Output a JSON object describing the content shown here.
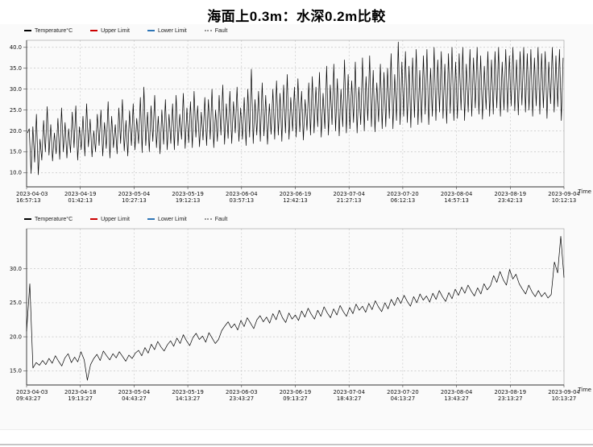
{
  "title": "海面上0.3m：水深0.2m比較",
  "time_axis_label": "Time",
  "legend": [
    {
      "label": "Temperature°C",
      "color": "#000000",
      "style": "solid"
    },
    {
      "label": "Upper Limit",
      "color": "#cc0000",
      "style": "solid"
    },
    {
      "label": "Lower Limit",
      "color": "#2e75b6",
      "style": "solid"
    },
    {
      "label": "Fault",
      "color": "#999999",
      "style": "dotted"
    }
  ],
  "chart_data": [
    {
      "name": "sea-surface-air-temperature",
      "type": "line",
      "line_color": "#000000",
      "grid": true,
      "legend_position": "top-left",
      "ylim": [
        6.6,
        41.7
      ],
      "y_ticks": [
        10,
        15,
        20,
        25,
        30,
        35,
        40
      ],
      "x_ticks": [
        [
          "2023-04-03",
          "16:57:13"
        ],
        [
          "2023-04-19",
          "01:42:13"
        ],
        [
          "2023-05-04",
          "10:27:13"
        ],
        [
          "2023-05-19",
          "19:12:13"
        ],
        [
          "2023-06-04",
          "03:57:13"
        ],
        [
          "2023-06-19",
          "12:42:13"
        ],
        [
          "2023-07-04",
          "21:27:13"
        ],
        [
          "2023-07-20",
          "06:12:13"
        ],
        [
          "2023-08-04",
          "14:57:13"
        ],
        [
          "2023-08-19",
          "23:42:13"
        ],
        [
          "2023-09-04",
          "10:12:13"
        ]
      ],
      "series": [
        {
          "name": "Temperature°C",
          "daily_min_max": [
            [
              19.5,
              20.5
            ],
            [
              9.8,
              21.0
            ],
            [
              12.5,
              24.0
            ],
            [
              9.5,
              18.0
            ],
            [
              13.0,
              22.5
            ],
            [
              15.0,
              25.8
            ],
            [
              14.2,
              21.5
            ],
            [
              12.8,
              19.5
            ],
            [
              14.5,
              23.0
            ],
            [
              13.2,
              25.5
            ],
            [
              15.0,
              22.0
            ],
            [
              13.5,
              20.5
            ],
            [
              14.8,
              24.5
            ],
            [
              16.0,
              26.0
            ],
            [
              13.0,
              21.0
            ],
            [
              15.5,
              23.5
            ],
            [
              14.0,
              26.5
            ],
            [
              16.2,
              22.8
            ],
            [
              13.8,
              20.0
            ],
            [
              15.0,
              24.0
            ],
            [
              16.5,
              25.0
            ],
            [
              14.0,
              22.0
            ],
            [
              15.8,
              27.0
            ],
            [
              13.5,
              23.5
            ],
            [
              16.0,
              21.5
            ],
            [
              14.5,
              25.5
            ],
            [
              17.0,
              27.5
            ],
            [
              15.2,
              22.5
            ],
            [
              14.0,
              24.8
            ],
            [
              16.5,
              26.5
            ],
            [
              15.5,
              23.0
            ],
            [
              17.0,
              28.0
            ],
            [
              14.8,
              30.5
            ],
            [
              16.5,
              24.5
            ],
            [
              15.0,
              26.0
            ],
            [
              17.5,
              28.5
            ],
            [
              16.0,
              23.5
            ],
            [
              14.5,
              25.0
            ],
            [
              16.8,
              27.5
            ],
            [
              15.5,
              24.0
            ],
            [
              17.0,
              26.5
            ],
            [
              15.5,
              28.5
            ],
            [
              16.5,
              24.0
            ],
            [
              18.0,
              29.0
            ],
            [
              15.8,
              25.5
            ],
            [
              17.2,
              27.0
            ],
            [
              16.0,
              29.5
            ],
            [
              18.5,
              26.0
            ],
            [
              16.2,
              24.5
            ],
            [
              17.8,
              28.0
            ],
            [
              16.5,
              27.5
            ],
            [
              18.0,
              30.0
            ],
            [
              16.0,
              25.0
            ],
            [
              17.5,
              28.5
            ],
            [
              19.0,
              31.0
            ],
            [
              16.8,
              26.5
            ],
            [
              18.2,
              29.5
            ],
            [
              17.0,
              27.0
            ],
            [
              19.5,
              30.5
            ],
            [
              17.5,
              25.5
            ],
            [
              18.0,
              28.0
            ],
            [
              16.5,
              30.0
            ],
            [
              18.5,
              34.8
            ],
            [
              17.0,
              27.5
            ],
            [
              19.0,
              29.5
            ],
            [
              17.5,
              31.5
            ],
            [
              18.8,
              28.5
            ],
            [
              16.8,
              26.5
            ],
            [
              19.2,
              30.0
            ],
            [
              18.0,
              32.0
            ],
            [
              19.0,
              29.0
            ],
            [
              17.5,
              31.0
            ],
            [
              19.5,
              33.5
            ],
            [
              18.0,
              28.0
            ],
            [
              20.0,
              30.5
            ],
            [
              18.5,
              32.5
            ],
            [
              19.8,
              29.5
            ],
            [
              17.8,
              27.5
            ],
            [
              20.2,
              31.5
            ],
            [
              19.0,
              33.0
            ],
            [
              19.5,
              30.5
            ],
            [
              21.0,
              34.0
            ],
            [
              18.5,
              29.0
            ],
            [
              20.5,
              35.5
            ],
            [
              19.0,
              31.0
            ],
            [
              21.5,
              36.0
            ],
            [
              20.0,
              32.5
            ],
            [
              18.8,
              30.0
            ],
            [
              21.0,
              37.0
            ],
            [
              19.5,
              33.5
            ],
            [
              20.5,
              32.0
            ],
            [
              22.0,
              36.5
            ],
            [
              19.5,
              30.5
            ],
            [
              21.5,
              37.5
            ],
            [
              20.0,
              33.0
            ],
            [
              22.5,
              38.0
            ],
            [
              21.0,
              34.5
            ],
            [
              19.8,
              31.5
            ],
            [
              22.2,
              36.0
            ],
            [
              20.5,
              34.0
            ],
            [
              21.0,
              35.0
            ],
            [
              23.0,
              38.5
            ],
            [
              20.5,
              33.5
            ],
            [
              22.5,
              41.3
            ],
            [
              21.5,
              36.5
            ],
            [
              23.5,
              39.0
            ],
            [
              22.0,
              35.5
            ],
            [
              20.8,
              37.5
            ],
            [
              23.2,
              39.5
            ],
            [
              21.5,
              34.5
            ],
            [
              22.0,
              38.0
            ],
            [
              24.0,
              39.5
            ],
            [
              21.5,
              35.0
            ],
            [
              23.5,
              40.0
            ],
            [
              22.5,
              37.0
            ],
            [
              24.5,
              39.0
            ],
            [
              23.0,
              36.0
            ],
            [
              21.8,
              38.5
            ],
            [
              24.2,
              40.0
            ],
            [
              22.5,
              36.5
            ],
            [
              23.0,
              38.5
            ],
            [
              25.0,
              40.0
            ],
            [
              22.5,
              36.0
            ],
            [
              24.5,
              39.5
            ],
            [
              23.5,
              37.5
            ],
            [
              25.5,
              40.0
            ],
            [
              24.0,
              38.0
            ],
            [
              22.8,
              35.5
            ],
            [
              25.2,
              39.0
            ],
            [
              23.5,
              37.0
            ],
            [
              24.0,
              39.0
            ],
            [
              25.5,
              40.0
            ],
            [
              23.5,
              36.5
            ],
            [
              25.0,
              39.5
            ],
            [
              24.5,
              38.0
            ],
            [
              26.0,
              40.0
            ],
            [
              24.8,
              37.0
            ],
            [
              23.8,
              39.0
            ],
            [
              26.2,
              40.0
            ],
            [
              24.5,
              38.5
            ],
            [
              25.0,
              39.5
            ],
            [
              23.5,
              37.5
            ],
            [
              26.0,
              40.0
            ],
            [
              24.0,
              38.5
            ],
            [
              25.5,
              39.0
            ],
            [
              23.0,
              36.5
            ],
            [
              26.5,
              40.0
            ],
            [
              24.5,
              38.0
            ],
            [
              25.8,
              39.5
            ],
            [
              22.5,
              37.5
            ]
          ]
        }
      ]
    },
    {
      "name": "water-depth-temperature",
      "type": "line",
      "line_color": "#000000",
      "grid": true,
      "legend_position": "top-left",
      "ylim": [
        12.9,
        35.9
      ],
      "y_ticks": [
        15,
        20,
        25,
        30
      ],
      "x_ticks": [
        [
          "2023-04-03",
          "09:43:27"
        ],
        [
          "2023-04-18",
          "19:13:27"
        ],
        [
          "2023-05-04",
          "04:43:27"
        ],
        [
          "2023-05-19",
          "14:13:27"
        ],
        [
          "2023-06-03",
          "23:43:27"
        ],
        [
          "2023-06-19",
          "09:13:27"
        ],
        [
          "2023-07-04",
          "18:43:27"
        ],
        [
          "2023-07-20",
          "04:13:27"
        ],
        [
          "2023-08-04",
          "13:43:27"
        ],
        [
          "2023-08-19",
          "23:13:27"
        ],
        [
          "2023-09-04",
          "10:13:27"
        ]
      ],
      "series": [
        {
          "name": "Temperature°C",
          "values": [
            20.8,
            27.8,
            15.4,
            16.2,
            15.8,
            16.5,
            15.9,
            16.8,
            16.1,
            17.2,
            16.4,
            15.7,
            16.9,
            17.5,
            16.2,
            17.0,
            16.3,
            17.8,
            16.6,
            13.6,
            15.9,
            16.8,
            17.4,
            16.5,
            17.9,
            17.2,
            16.6,
            17.5,
            16.9,
            17.8,
            17.1,
            16.4,
            17.3,
            16.8,
            17.6,
            18.0,
            17.2,
            18.4,
            17.6,
            18.9,
            18.1,
            19.3,
            18.5,
            17.9,
            18.8,
            19.4,
            18.6,
            19.8,
            19.0,
            20.3,
            19.4,
            18.7,
            19.9,
            20.5,
            19.6,
            20.1,
            19.2,
            20.6,
            19.8,
            19.0,
            19.6,
            20.9,
            21.6,
            22.2,
            21.3,
            21.9,
            21.0,
            22.4,
            21.5,
            22.8,
            22.0,
            21.2,
            22.5,
            23.1,
            22.2,
            22.9,
            22.0,
            23.4,
            22.5,
            23.9,
            22.8,
            22.1,
            23.5,
            22.6,
            23.2,
            22.4,
            23.8,
            22.9,
            24.2,
            23.3,
            22.6,
            23.9,
            23.0,
            24.4,
            23.5,
            22.8,
            24.1,
            23.2,
            24.6,
            23.7,
            23.0,
            24.3,
            23.4,
            24.8,
            23.9,
            24.5,
            23.6,
            24.9,
            24.0,
            25.3,
            24.4,
            23.7,
            25.0,
            24.1,
            25.5,
            24.6,
            25.8,
            24.9,
            26.1,
            25.2,
            24.5,
            25.9,
            25.0,
            26.3,
            25.4,
            26.0,
            25.1,
            26.4,
            25.5,
            26.8,
            25.9,
            25.2,
            26.5,
            25.6,
            27.0,
            26.1,
            27.3,
            26.4,
            27.6,
            26.7,
            26.0,
            27.2,
            26.3,
            27.8,
            26.9,
            27.5,
            29.0,
            28.0,
            29.6,
            28.4,
            27.6,
            29.9,
            28.5,
            29.2,
            27.8,
            27.0,
            26.3,
            27.6,
            26.6,
            25.9,
            26.8,
            25.9,
            26.5,
            25.7,
            26.2,
            31.0,
            29.4,
            34.8,
            28.7
          ]
        }
      ]
    }
  ]
}
